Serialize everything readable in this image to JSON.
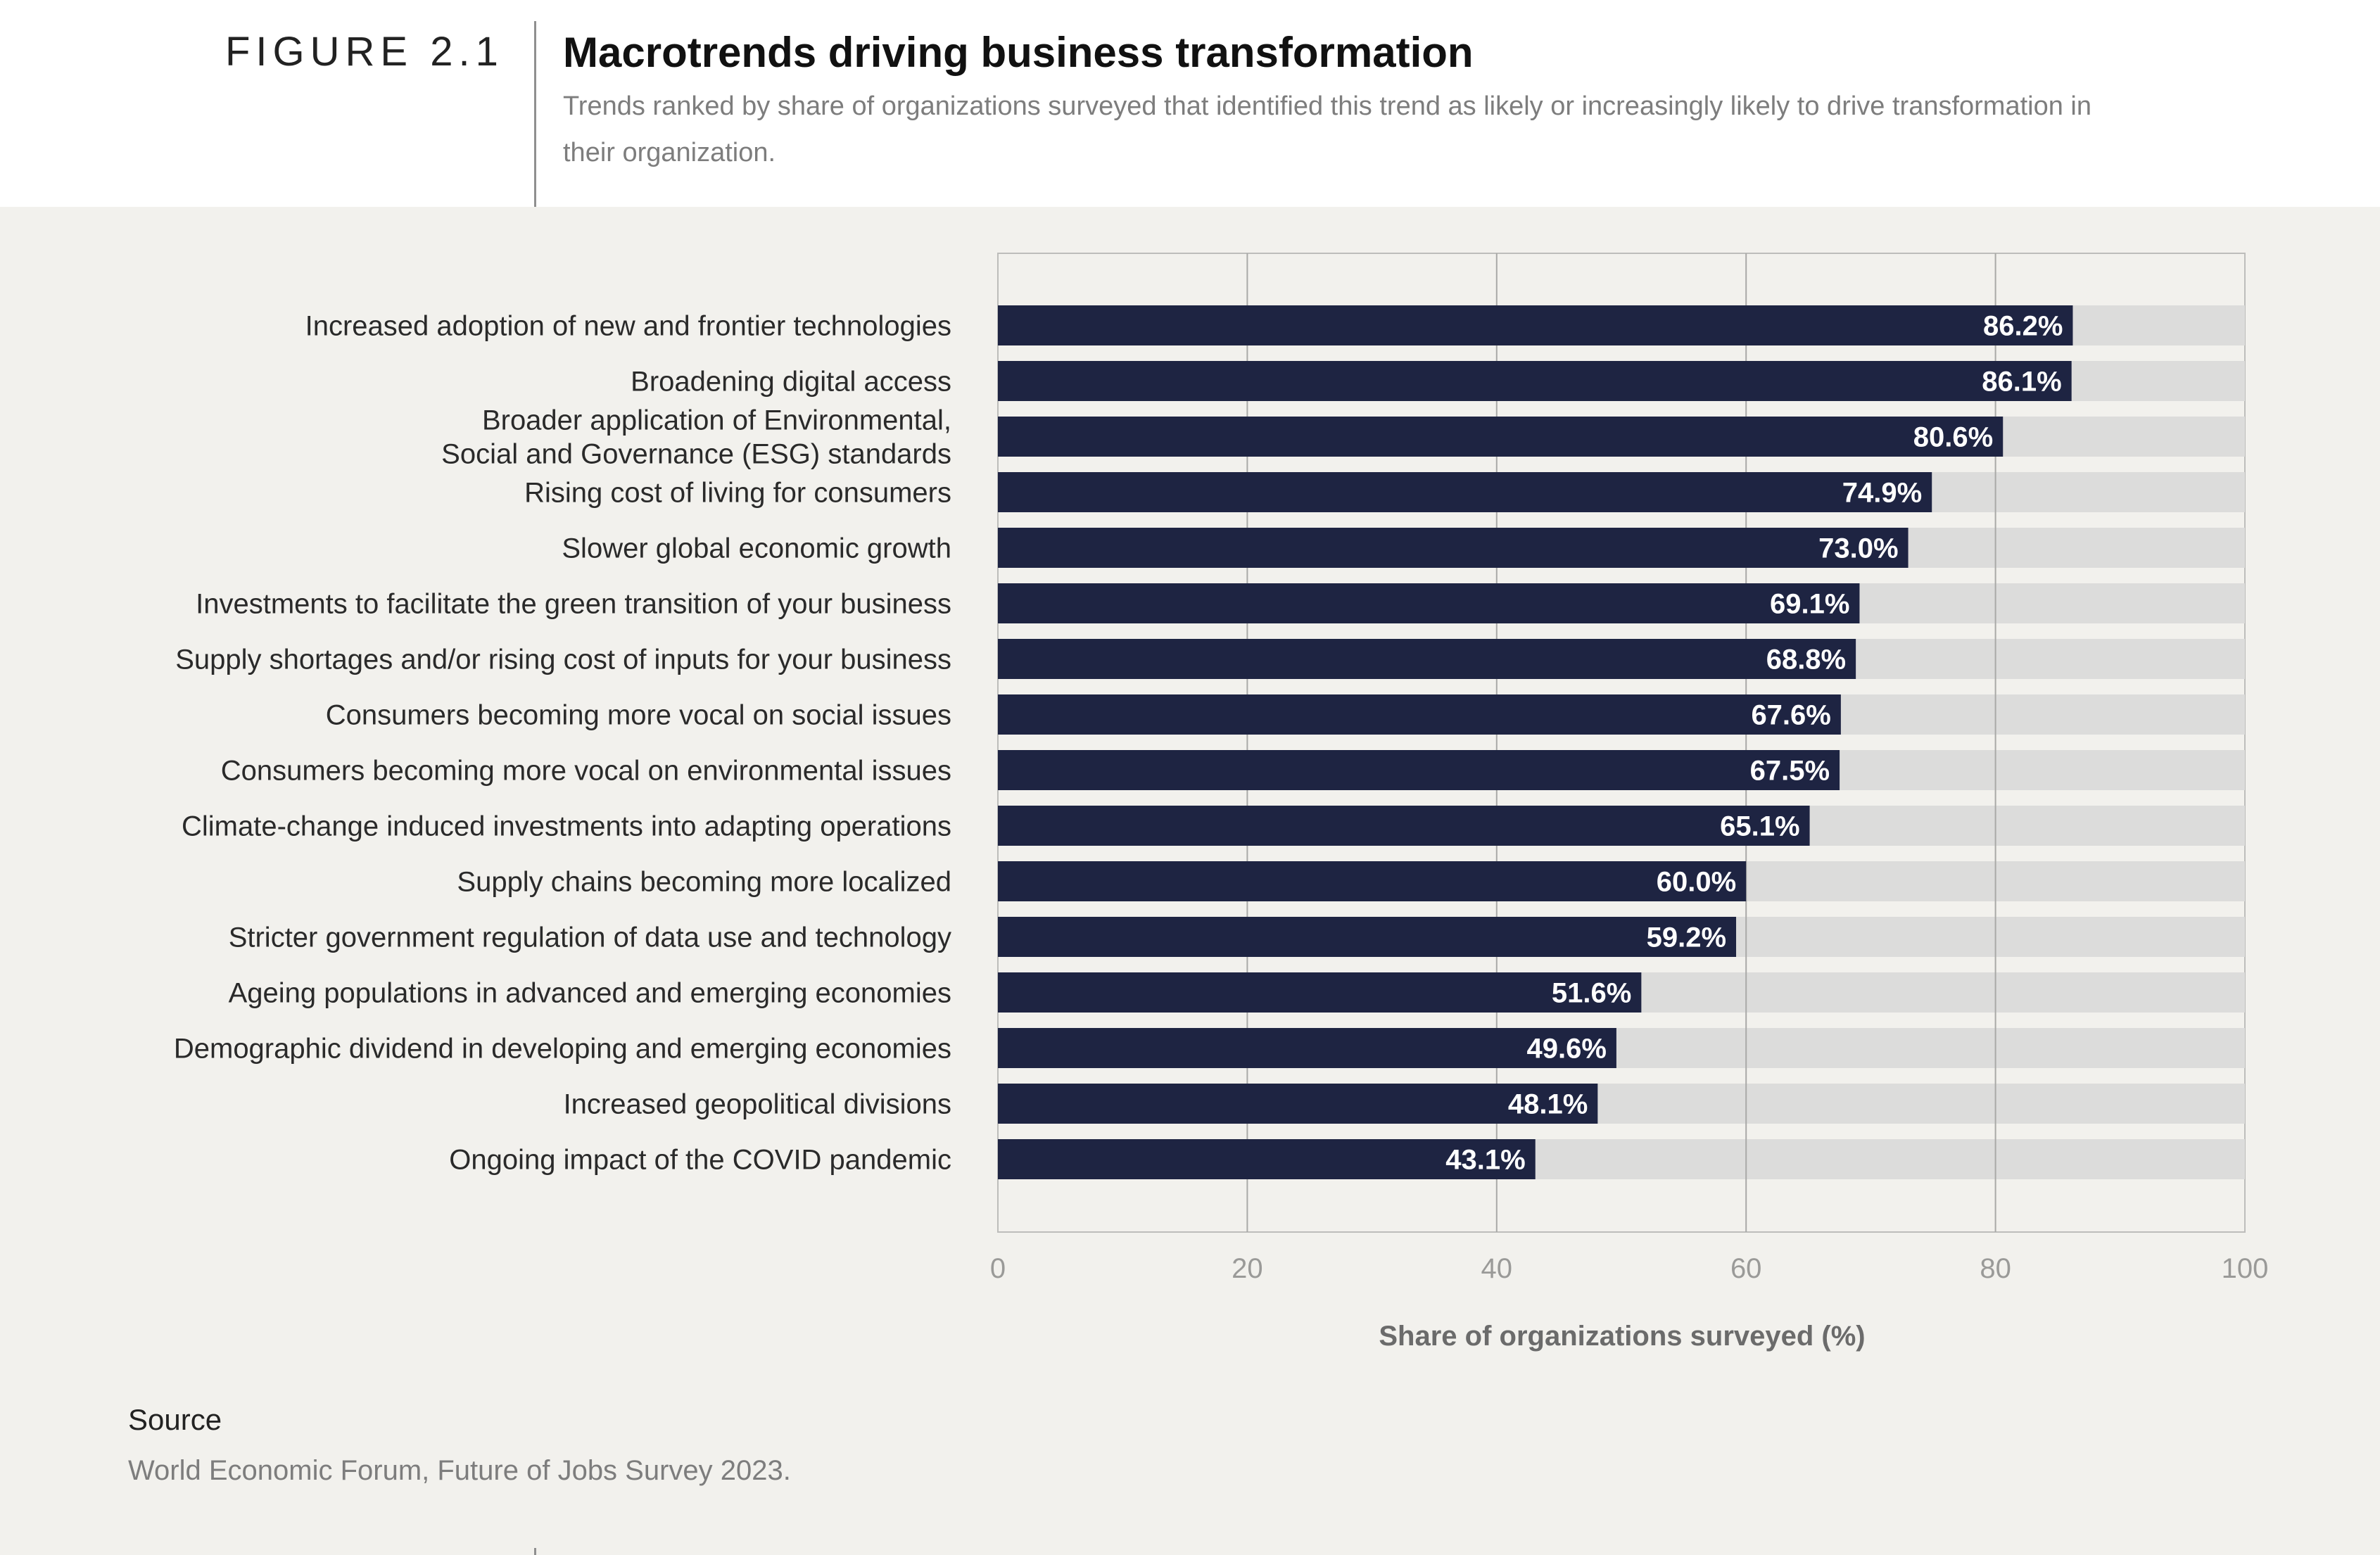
{
  "figure": {
    "label": "FIGURE 2.1",
    "title": "Macrotrends driving business transformation",
    "subtitle": "Trends ranked by share of organizations surveyed that identified this trend as likely or increasingly likely to drive transformation in their organization."
  },
  "chart_data": {
    "type": "bar",
    "orientation": "horizontal",
    "categories": [
      "Increased adoption of new and frontier technologies",
      "Broadening digital access",
      "Broader application of Environmental,\nSocial and Governance (ESG) standards",
      "Rising cost of living for consumers",
      "Slower global economic growth",
      "Investments to facilitate the green transition of your business",
      "Supply shortages and/or rising cost of inputs for your business",
      "Consumers becoming more vocal on social issues",
      "Consumers becoming more vocal on environmental issues",
      "Climate-change induced investments into adapting operations",
      "Supply chains becoming more localized",
      "Stricter government regulation of data use and technology",
      "Ageing populations in advanced and emerging economies",
      "Demographic dividend in developing and emerging economies",
      "Increased geopolitical divisions",
      "Ongoing impact of the COVID pandemic"
    ],
    "values": [
      86.2,
      86.1,
      80.6,
      74.9,
      73.0,
      69.1,
      68.8,
      67.6,
      67.5,
      65.1,
      60.0,
      59.2,
      51.6,
      49.6,
      48.1,
      43.1
    ],
    "value_labels": [
      "86.2%",
      "86.1%",
      "80.6%",
      "74.9%",
      "73.0%",
      "69.1%",
      "68.8%",
      "67.6%",
      "67.5%",
      "65.1%",
      "60.0%",
      "59.2%",
      "51.6%",
      "49.6%",
      "48.1%",
      "43.1%"
    ],
    "xlabel": "Share of organizations surveyed (%)",
    "xlim": [
      0,
      100
    ],
    "xticks": [
      0,
      20,
      40,
      60,
      80,
      100
    ],
    "grid": true,
    "colors": {
      "bar": "#1e2442",
      "track": "#dcdcdb",
      "panel_background": "#f2f1ed",
      "bar_label": "#ffffff"
    }
  },
  "source": {
    "title": "Source",
    "text": "World Economic Forum, Future of Jobs Survey 2023."
  }
}
